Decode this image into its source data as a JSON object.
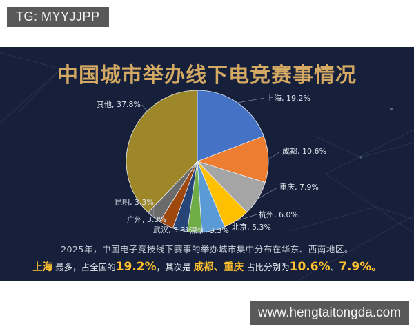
{
  "badges": {
    "top_left": "TG: MYYJJPP",
    "bottom_right": "www.hengtaitongda.com"
  },
  "chart_data": {
    "type": "pie",
    "title": "中国城市举办线下电竞赛事情况",
    "start_angle": "top",
    "direction": "clockwise",
    "label_format": "{label}, {value}%",
    "slices": [
      {
        "label": "上海",
        "value": 19.2,
        "color": "#4472C4"
      },
      {
        "label": "成都",
        "value": 10.6,
        "color": "#ED7D31"
      },
      {
        "label": "重庆",
        "value": 7.9,
        "color": "#A5A5A5"
      },
      {
        "label": "杭州",
        "value": 6.0,
        "color": "#FFC000"
      },
      {
        "label": "北京",
        "value": 5.3,
        "color": "#5B9BD5"
      },
      {
        "label": "深圳",
        "value": 3.3,
        "color": "#70AD47"
      },
      {
        "label": "武汉",
        "value": 3.3,
        "color": "#264478"
      },
      {
        "label": "广州",
        "value": 3.3,
        "color": "#9E480E"
      },
      {
        "label": "昆明",
        "value": 3.3,
        "color": "#6B6B6B"
      },
      {
        "label": "其他",
        "value": 37.8,
        "color": "#9D8728"
      }
    ]
  },
  "summary": {
    "line1": "2025年，中国电子竞技线下赛事的举办城市集中分布在华东、西南地区。",
    "line2_segments": [
      {
        "text": "上海",
        "style": "gold"
      },
      {
        "text": " 最多，占全国的",
        "style": "plain"
      },
      {
        "text": "19.2%",
        "style": "gold-big"
      },
      {
        "text": "，其次是 ",
        "style": "plain"
      },
      {
        "text": "成都、重庆",
        "style": "gold"
      },
      {
        "text": " 占比分别为",
        "style": "plain"
      },
      {
        "text": "10.6%",
        "style": "gold-big"
      },
      {
        "text": "、",
        "style": "plain"
      },
      {
        "text": "7.9%",
        "style": "gold-big"
      },
      {
        "text": "。",
        "style": "gold"
      }
    ]
  },
  "colors": {
    "panel_bg": "#16203A",
    "title_gold": "#D4A963",
    "highlight_gold": "#FFC12E",
    "badge_bg": "#595959",
    "label_text": "#DEE3EB"
  }
}
